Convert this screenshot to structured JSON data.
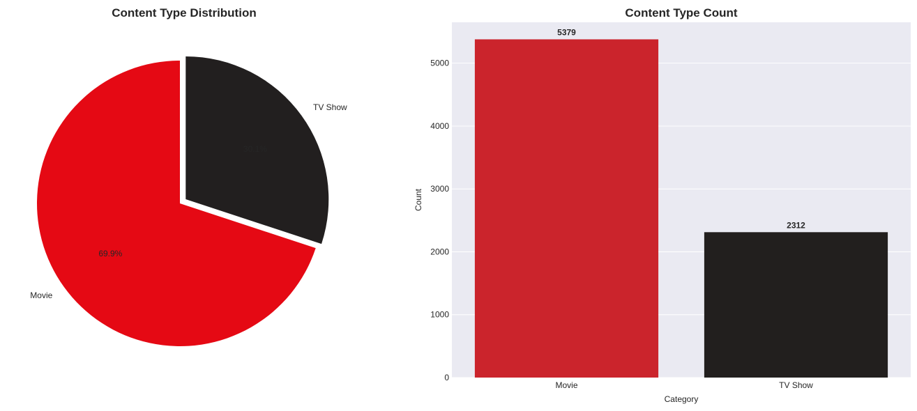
{
  "chart_data": [
    {
      "type": "pie",
      "title": "Content Type Distribution",
      "labels": [
        "Movie",
        "TV Show"
      ],
      "values": [
        5379,
        2312
      ],
      "percent_labels": [
        "69.9%",
        "30.1%"
      ],
      "colors": [
        "#E50914",
        "#221F1F"
      ],
      "pct_text_colors": [
        "#262626",
        "#262626"
      ],
      "explode": [
        0,
        0.05
      ],
      "start_angle": 90
    },
    {
      "type": "bar",
      "title": "Content Type Count",
      "categories": [
        "Movie",
        "TV Show"
      ],
      "values": [
        5379,
        2312
      ],
      "value_labels": [
        "5379",
        "2312"
      ],
      "colors": [
        "#CB242C",
        "#221F1E"
      ],
      "xlabel": "Category",
      "ylabel": "Count",
      "ylim": [
        0,
        5650
      ],
      "yticks": [
        0,
        1000,
        2000,
        3000,
        4000,
        5000
      ],
      "grid": true,
      "background": "#EAEAF2"
    }
  ]
}
